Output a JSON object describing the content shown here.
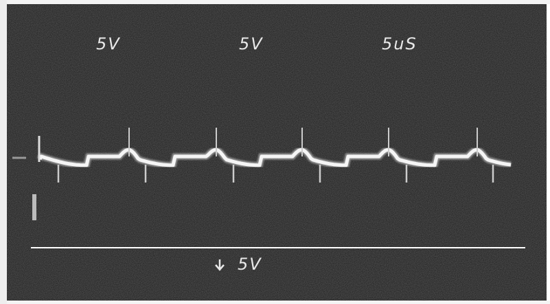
{
  "labels": {
    "top_left": "5V",
    "top_middle": "5V",
    "top_right": "5uS",
    "bottom": "5V"
  }
}
